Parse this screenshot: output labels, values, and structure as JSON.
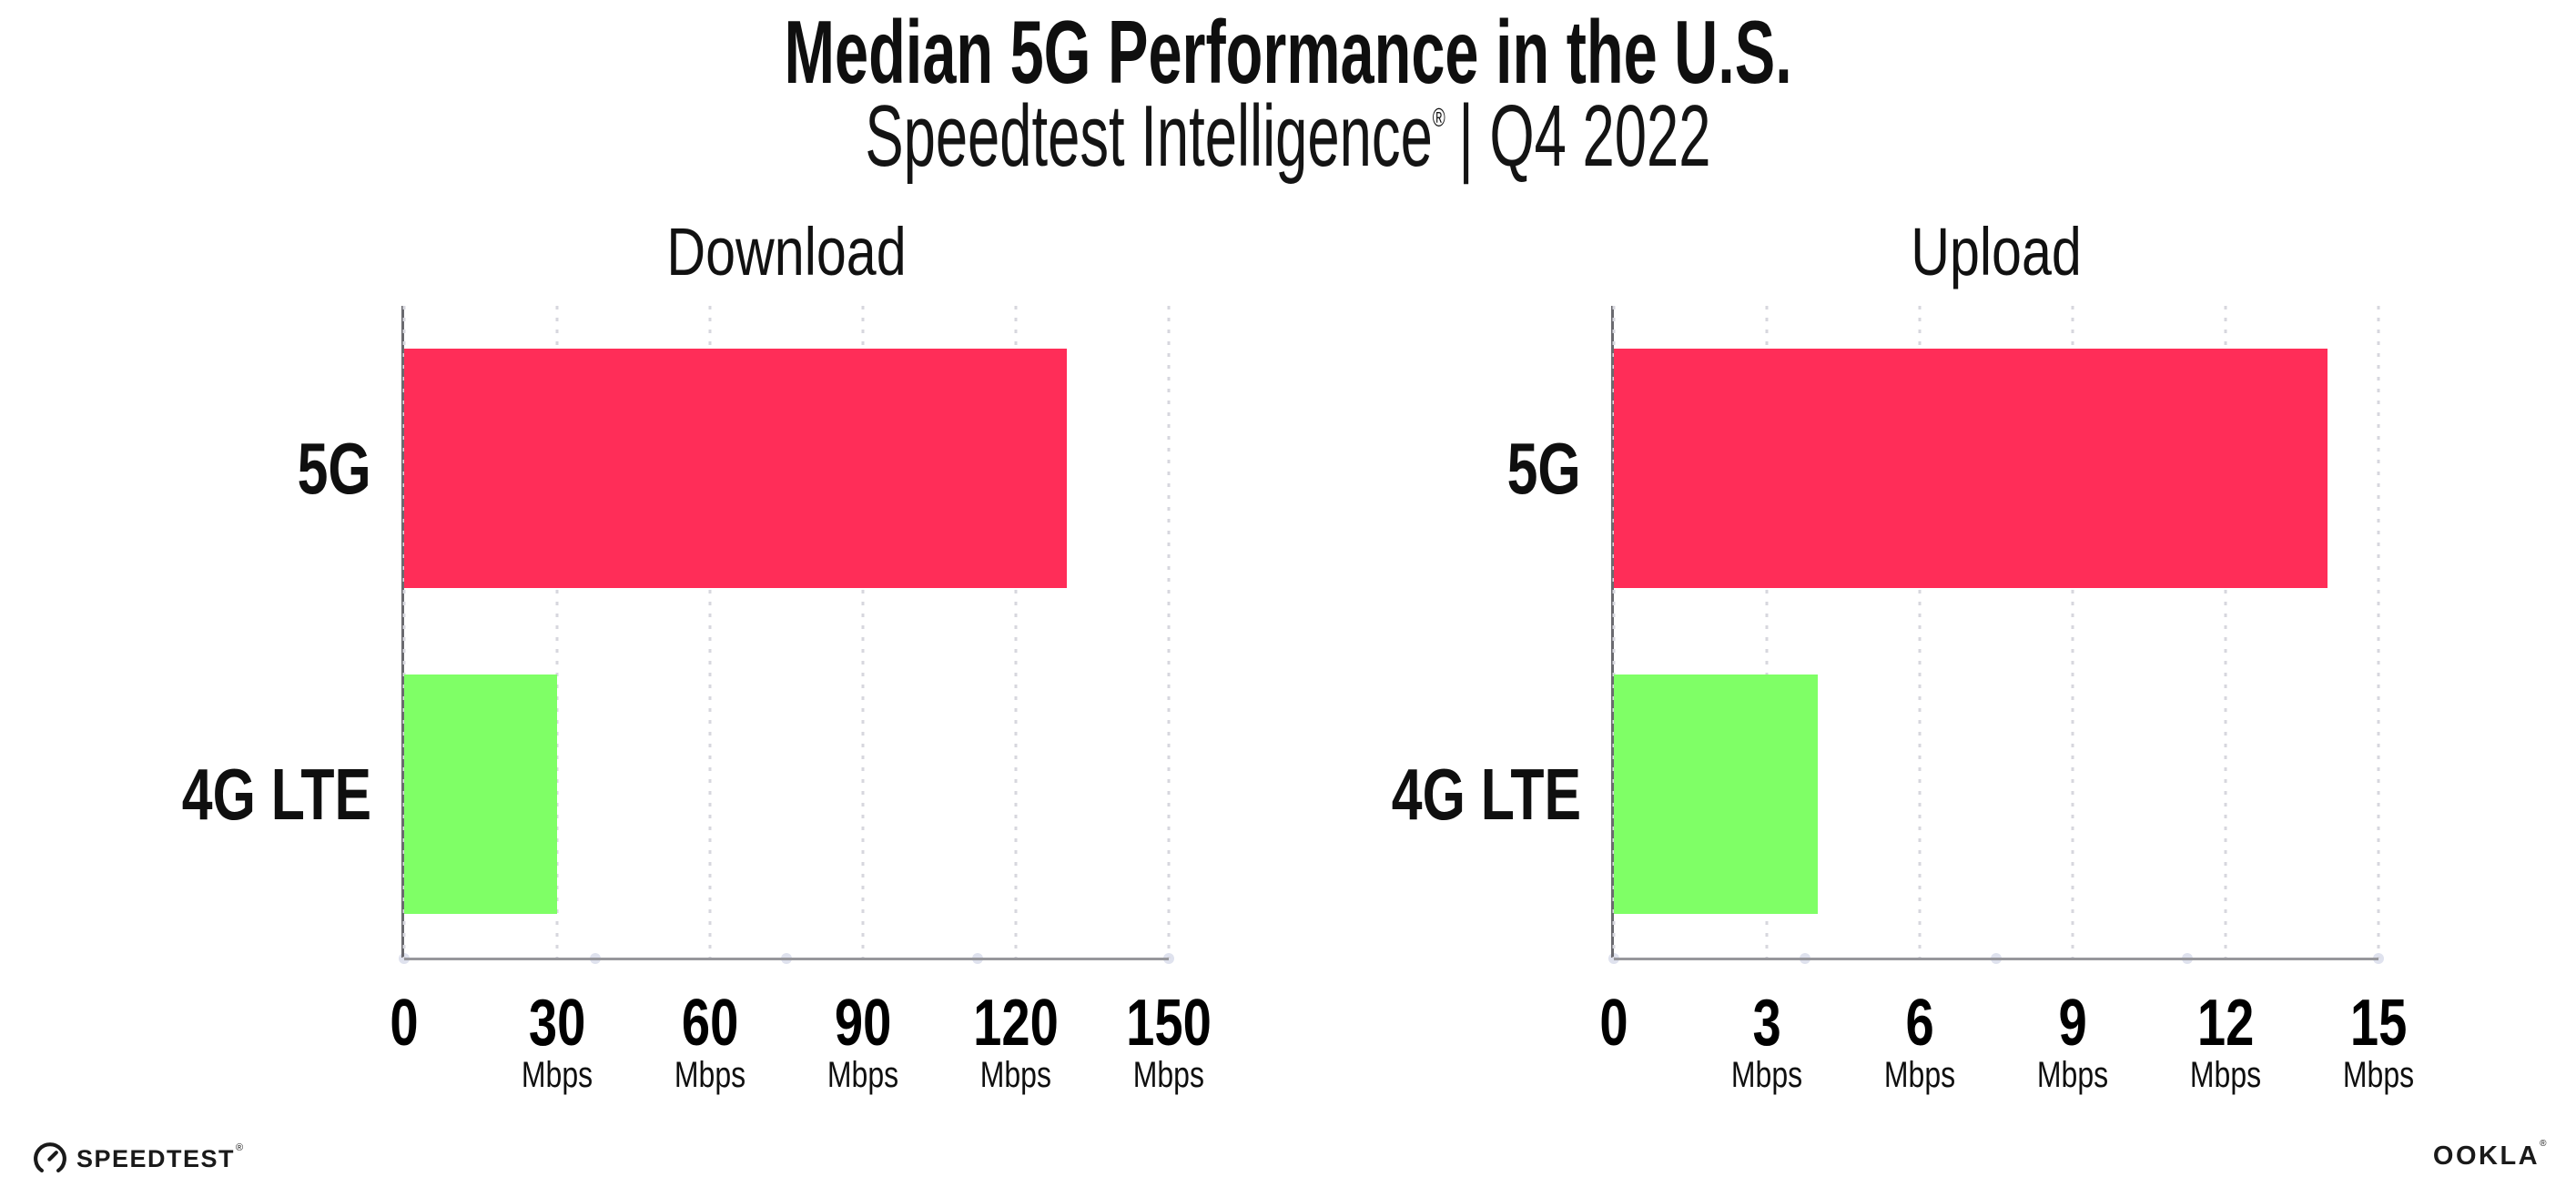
{
  "header": {
    "title": "Median 5G Performance in the U.S.",
    "subtitle_brand": "Speedtest Intelligence",
    "subtitle_mark": "®",
    "subtitle_rest": "| Q4 2022"
  },
  "chart_data": [
    {
      "type": "bar",
      "orientation": "horizontal",
      "title": "Download",
      "categories": [
        "5G",
        "4G LTE"
      ],
      "values": [
        130,
        30
      ],
      "unit": "Mbps",
      "xlabel": "",
      "ylabel": "",
      "xlim": [
        0,
        150
      ],
      "ticks": [
        0,
        30,
        60,
        90,
        120,
        150
      ],
      "tick_labels": [
        "0",
        "30",
        "60",
        "90",
        "120",
        "150"
      ],
      "grid": "vertical-dotted",
      "legend": "none",
      "bar_colors": [
        "#FF2D58",
        "#7FFF66"
      ]
    },
    {
      "type": "bar",
      "orientation": "horizontal",
      "title": "Upload",
      "categories": [
        "5G",
        "4G LTE"
      ],
      "values": [
        14,
        4
      ],
      "unit": "Mbps",
      "xlabel": "",
      "ylabel": "",
      "xlim": [
        0,
        15
      ],
      "ticks": [
        0,
        3,
        6,
        9,
        12,
        15
      ],
      "tick_labels": [
        "0",
        "3",
        "6",
        "9",
        "12",
        "15"
      ],
      "grid": "vertical-dotted",
      "legend": "none",
      "bar_colors": [
        "#FF2D58",
        "#7FFF66"
      ]
    }
  ],
  "colors": {
    "bar_5g": "#FF2D58",
    "bar_4g_lte": "#7FFF66",
    "spine": "#6a6a6f",
    "axis_line": "#97979c",
    "gridline": "#d7d7de",
    "tick_dot": "#dfe2ee",
    "text": "#0f0f0f"
  },
  "footer": {
    "speedtest_label": "SPEEDTEST",
    "speedtest_mark": "®",
    "ookla_label": "OOKLA",
    "ookla_mark": "®"
  }
}
